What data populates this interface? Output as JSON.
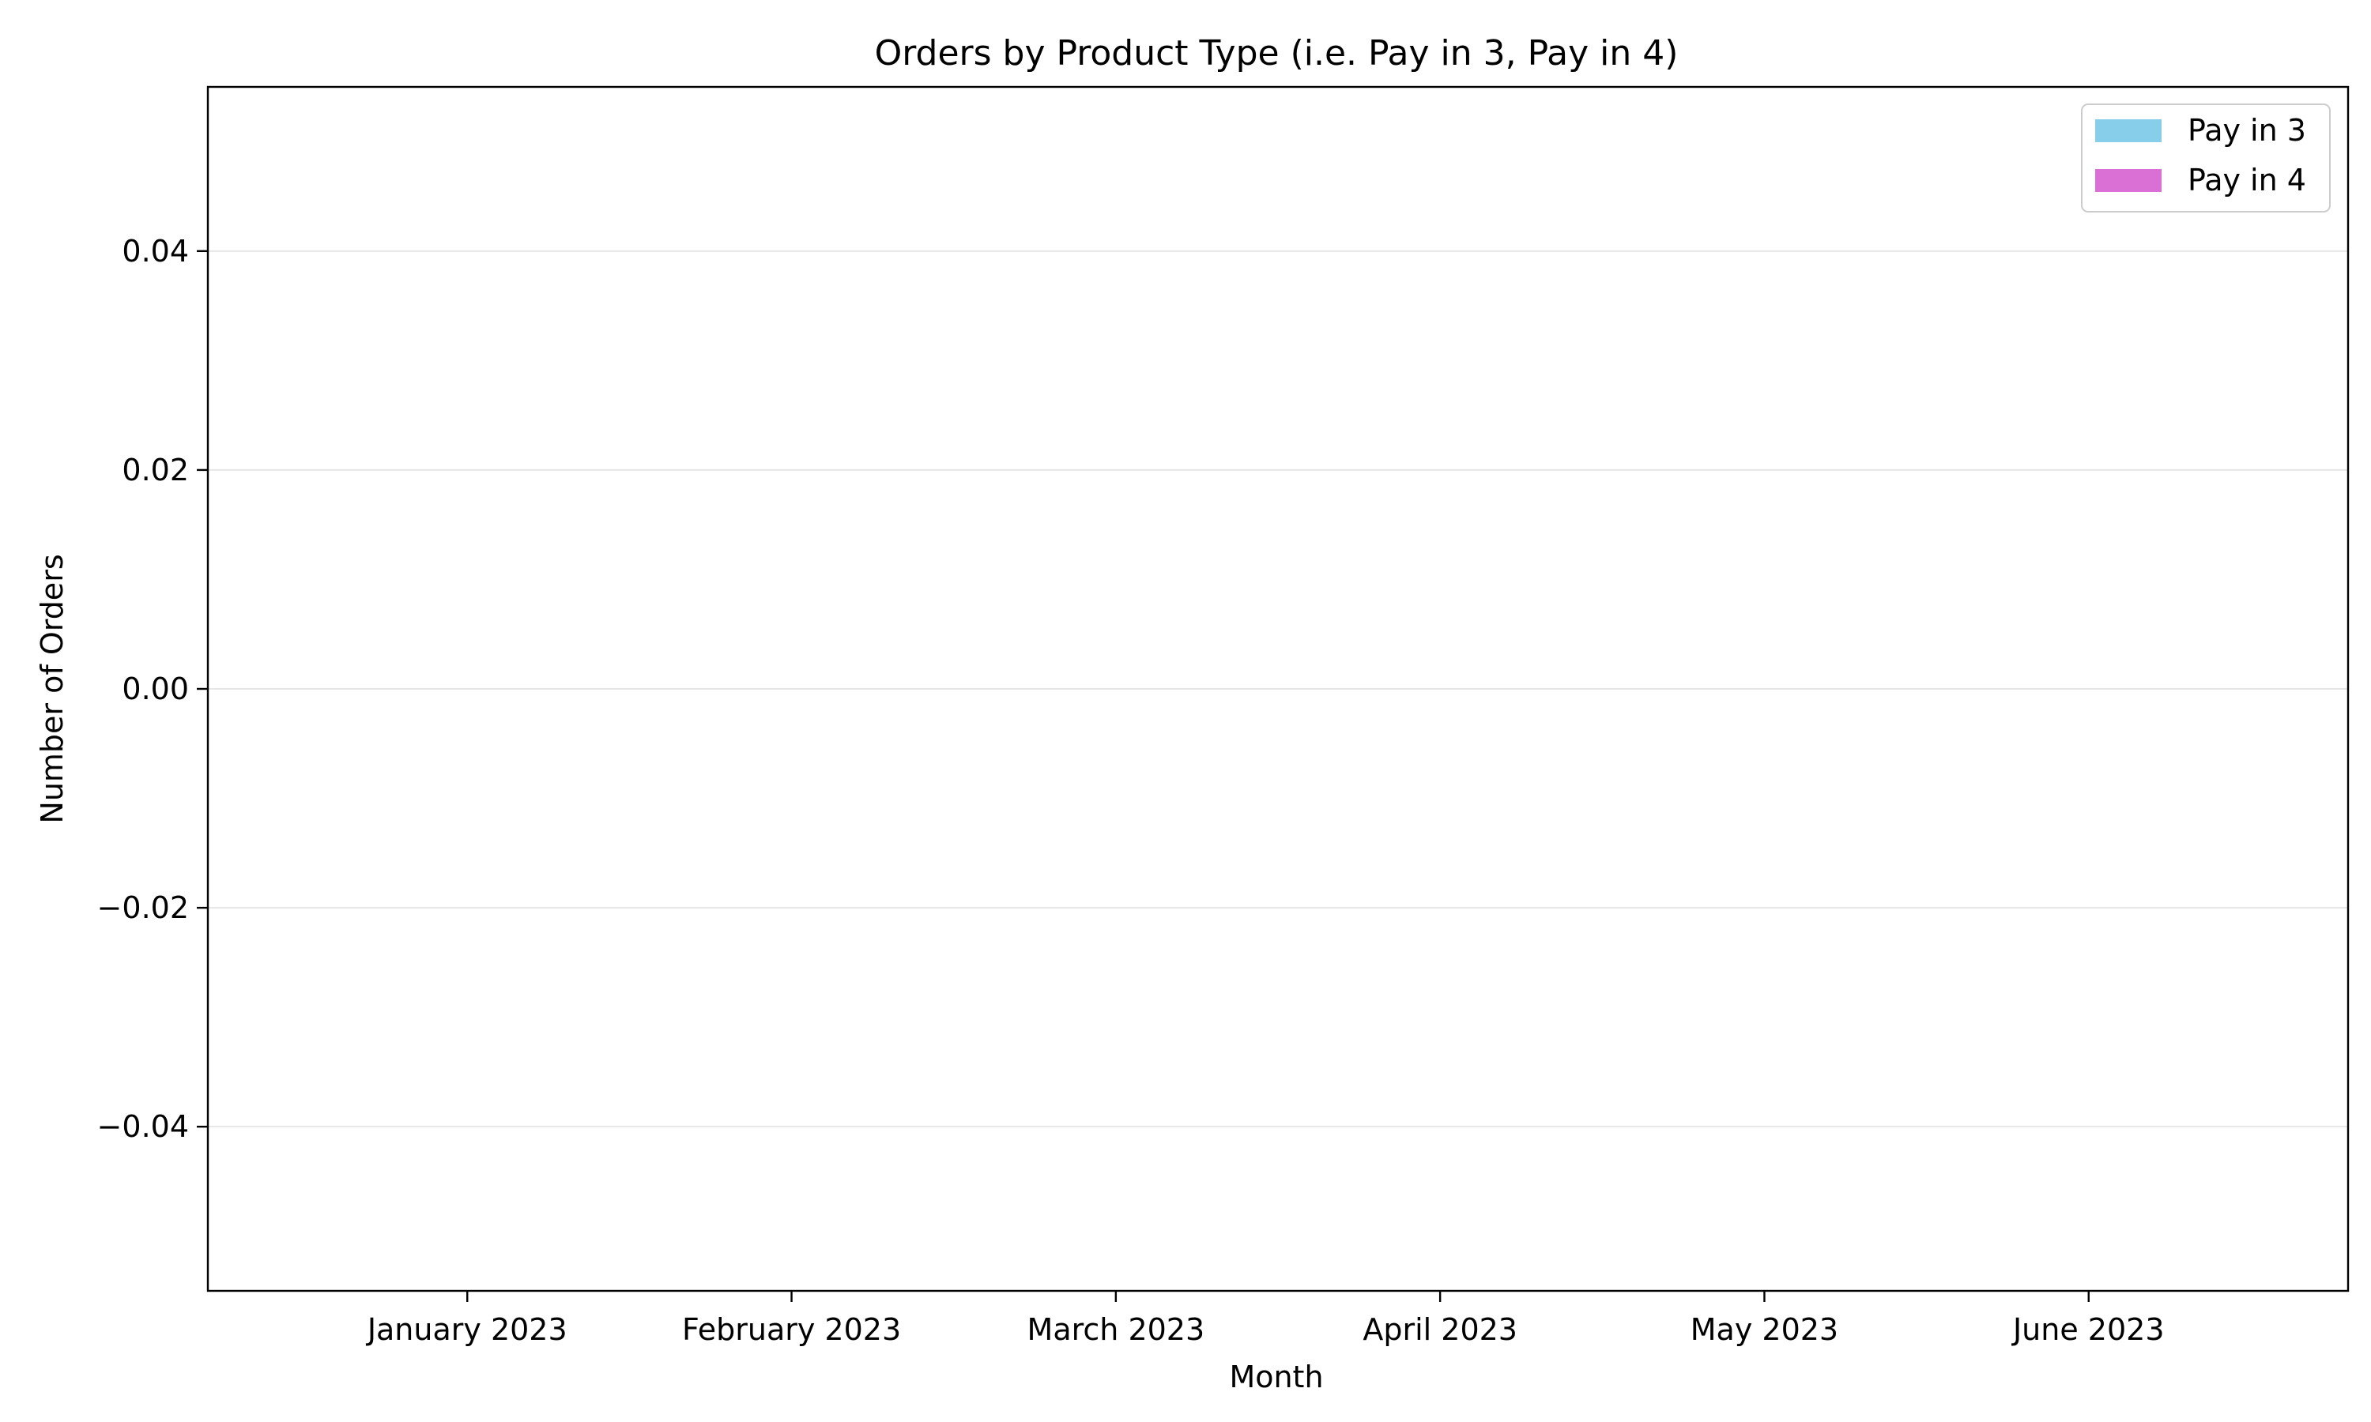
{
  "chart_data": {
    "type": "bar",
    "title": "Orders by Product Type (i.e. Pay in 3, Pay in 4)",
    "xlabel": "Month",
    "ylabel": "Number of Orders",
    "categories": [
      "January 2023",
      "February 2023",
      "March 2023",
      "April 2023",
      "May 2023",
      "June 2023"
    ],
    "series": [
      {
        "name": "Pay in 3",
        "values": [
          0,
          0,
          0,
          0,
          0,
          0
        ],
        "color": "#87CEEB"
      },
      {
        "name": "Pay in 4",
        "values": [
          0,
          0,
          0,
          0,
          0,
          0
        ],
        "color": "#DA70D6"
      }
    ],
    "ylim": [
      -0.055,
      0.055
    ],
    "yticks": [
      -0.04,
      -0.02,
      0.0,
      0.02,
      0.04
    ],
    "ytick_labels": [
      "−0.04",
      "−0.02",
      "0.00",
      "0.02",
      "0.04"
    ],
    "grid": "y",
    "grid_color": "#e6e6e6",
    "legend_position": "top-right"
  }
}
